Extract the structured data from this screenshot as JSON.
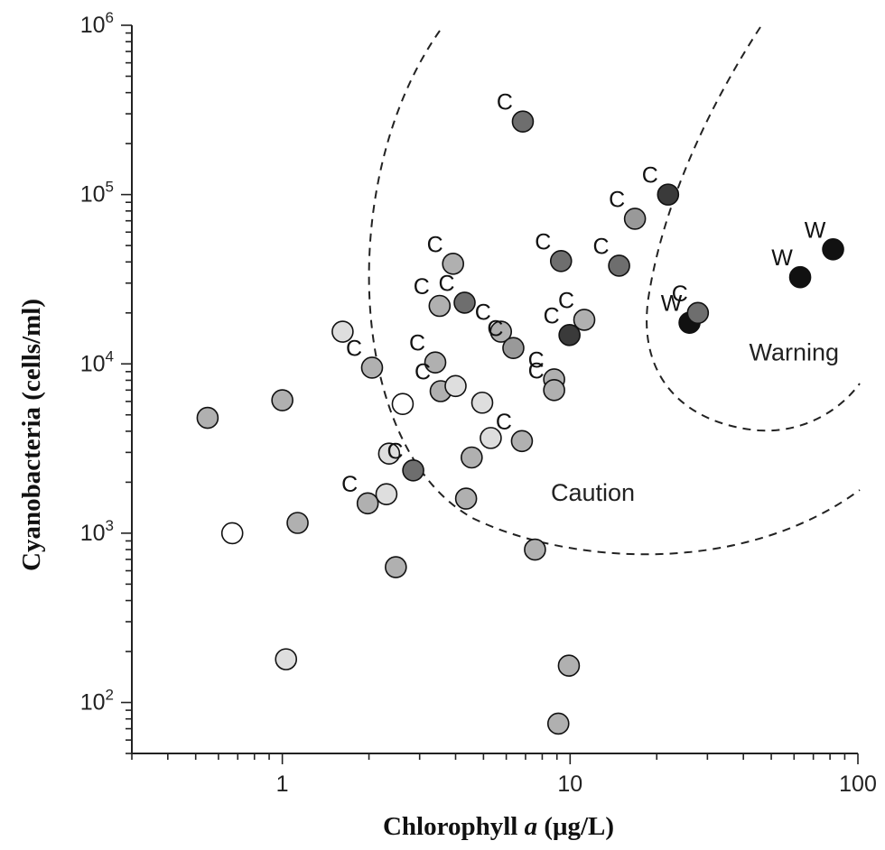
{
  "chart_data": {
    "type": "scatter",
    "xlabel_main": "Chlorophyll ",
    "xlabel_italic": "a",
    "xlabel_unit": " (μg/L)",
    "ylabel": "Cyanobacteria (cells/ml)",
    "xscale": "log",
    "yscale": "log",
    "xlim": [
      0.3,
      100
    ],
    "ylim": [
      50,
      1000000
    ],
    "x_ticks": [
      {
        "value": 1,
        "label": "1"
      },
      {
        "value": 10,
        "label": "10"
      },
      {
        "value": 100,
        "label": "100"
      }
    ],
    "y_ticks": [
      {
        "value": 100,
        "base": "10",
        "exp": "2"
      },
      {
        "value": 1000,
        "base": "10",
        "exp": "3"
      },
      {
        "value": 10000,
        "base": "10",
        "exp": "4"
      },
      {
        "value": 100000,
        "base": "10",
        "exp": "5"
      },
      {
        "value": 1000000,
        "base": "10",
        "exp": "6"
      }
    ],
    "regions": [
      {
        "name": "Caution",
        "label_at": [
          12,
          1550
        ]
      },
      {
        "name": "Warning",
        "label_at": [
          60,
          10500
        ]
      }
    ],
    "fill_palette": {
      "white": "#ffffff",
      "lightgray": "#dedede",
      "gray": "#b0b0b0",
      "midgray": "#999999",
      "darkgray": "#6e6e6e",
      "nearblack": "#3a3a3a",
      "black": "#111111"
    },
    "points": [
      {
        "x": 0.55,
        "y": 4800,
        "fill": "gray",
        "label": ""
      },
      {
        "x": 0.67,
        "y": 1000,
        "fill": "white",
        "label": ""
      },
      {
        "x": 1.0,
        "y": 6100,
        "fill": "gray",
        "label": ""
      },
      {
        "x": 1.03,
        "y": 180,
        "fill": "lightgray",
        "label": ""
      },
      {
        "x": 1.13,
        "y": 1150,
        "fill": "gray",
        "label": ""
      },
      {
        "x": 1.62,
        "y": 15500,
        "fill": "lightgray",
        "label": ""
      },
      {
        "x": 1.98,
        "y": 1500,
        "fill": "gray",
        "label": "C"
      },
      {
        "x": 2.05,
        "y": 9500,
        "fill": "gray",
        "label": "C"
      },
      {
        "x": 2.3,
        "y": 1700,
        "fill": "lightgray",
        "label": ""
      },
      {
        "x": 2.35,
        "y": 2950,
        "fill": "lightgray",
        "label": ""
      },
      {
        "x": 2.48,
        "y": 630,
        "fill": "gray",
        "label": ""
      },
      {
        "x": 2.62,
        "y": 5800,
        "fill": "white",
        "label": ""
      },
      {
        "x": 2.85,
        "y": 2350,
        "fill": "darkgray",
        "label": "C"
      },
      {
        "x": 3.4,
        "y": 10200,
        "fill": "gray",
        "label": "C"
      },
      {
        "x": 3.52,
        "y": 22000,
        "fill": "gray",
        "label": "C"
      },
      {
        "x": 3.55,
        "y": 6900,
        "fill": "gray",
        "label": "C"
      },
      {
        "x": 3.92,
        "y": 39000,
        "fill": "gray",
        "label": "C"
      },
      {
        "x": 4.0,
        "y": 7400,
        "fill": "lightgray",
        "label": ""
      },
      {
        "x": 4.3,
        "y": 23000,
        "fill": "darkgray",
        "label": "C"
      },
      {
        "x": 4.35,
        "y": 1600,
        "fill": "gray",
        "label": ""
      },
      {
        "x": 4.55,
        "y": 2800,
        "fill": "gray",
        "label": ""
      },
      {
        "x": 4.95,
        "y": 5900,
        "fill": "lightgray",
        "label": ""
      },
      {
        "x": 5.3,
        "y": 3650,
        "fill": "lightgray",
        "label": ""
      },
      {
        "x": 5.75,
        "y": 15500,
        "fill": "gray",
        "label": "C"
      },
      {
        "x": 6.35,
        "y": 12400,
        "fill": "midgray",
        "label": "C"
      },
      {
        "x": 6.8,
        "y": 3500,
        "fill": "gray",
        "label": "C"
      },
      {
        "x": 6.85,
        "y": 270000,
        "fill": "darkgray",
        "label": "C"
      },
      {
        "x": 7.55,
        "y": 800,
        "fill": "gray",
        "label": ""
      },
      {
        "x": 8.8,
        "y": 8100,
        "fill": "gray",
        "label": "C"
      },
      {
        "x": 8.8,
        "y": 7000,
        "fill": "gray",
        "label": "C"
      },
      {
        "x": 9.1,
        "y": 75,
        "fill": "gray",
        "label": ""
      },
      {
        "x": 9.3,
        "y": 40500,
        "fill": "darkgray",
        "label": "C"
      },
      {
        "x": 9.9,
        "y": 165,
        "fill": "gray",
        "label": ""
      },
      {
        "x": 9.95,
        "y": 14800,
        "fill": "nearblack",
        "label": "C"
      },
      {
        "x": 11.2,
        "y": 18200,
        "fill": "gray",
        "label": "C"
      },
      {
        "x": 14.8,
        "y": 38000,
        "fill": "darkgray",
        "label": "C"
      },
      {
        "x": 16.8,
        "y": 72000,
        "fill": "midgray",
        "label": "C"
      },
      {
        "x": 21.9,
        "y": 100000,
        "fill": "nearblack",
        "label": "C"
      },
      {
        "x": 26.0,
        "y": 17500,
        "fill": "black",
        "label": "W"
      },
      {
        "x": 27.8,
        "y": 20000,
        "fill": "darkgray",
        "label": "C"
      },
      {
        "x": 63.0,
        "y": 32500,
        "fill": "black",
        "label": "W"
      },
      {
        "x": 82.0,
        "y": 47500,
        "fill": "black",
        "label": "W"
      }
    ]
  }
}
